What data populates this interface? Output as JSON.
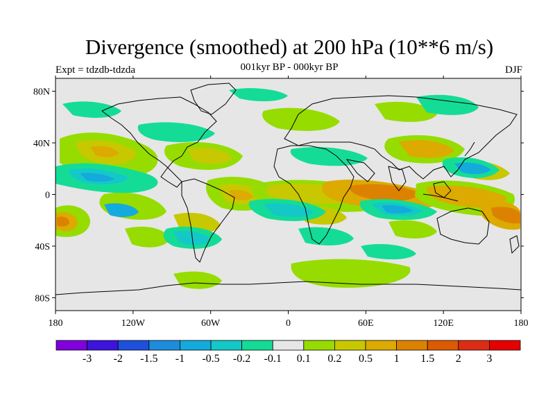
{
  "header": {
    "title": "Divergence (smoothed) at 200 hPa (10**6 m/s)",
    "subtitle": "001kyr BP - 000kyr BP",
    "experiment": "Expt = tdzdb-tdzda",
    "season": "DJF"
  },
  "map": {
    "lon_range": [
      -180,
      180
    ],
    "lat_range": [
      -90,
      90
    ],
    "lat_ticks": [
      {
        "value": 80,
        "label": "80N"
      },
      {
        "value": 40,
        "label": "40N"
      },
      {
        "value": 0,
        "label": "0"
      },
      {
        "value": -40,
        "label": "40S"
      },
      {
        "value": -80,
        "label": "80S"
      }
    ],
    "lon_ticks": [
      {
        "value": -180,
        "label": "180"
      },
      {
        "value": -120,
        "label": "120W"
      },
      {
        "value": -60,
        "label": "60W"
      },
      {
        "value": 0,
        "label": "0"
      },
      {
        "value": 60,
        "label": "60E"
      },
      {
        "value": 120,
        "label": "120E"
      },
      {
        "value": 180,
        "label": "180"
      }
    ],
    "background_color": "#e6e6e6",
    "coastline_color": "#000000"
  },
  "colorbar": {
    "colors": [
      "#7f00dc",
      "#3c14dc",
      "#1e50dc",
      "#1e8cdc",
      "#14aadc",
      "#14c8c8",
      "#14dc96",
      "#e6e6e6",
      "#96dc00",
      "#c8c800",
      "#dcaa00",
      "#dc8200",
      "#dc5a00",
      "#dc2d14",
      "#e60000"
    ],
    "labels": [
      "-3",
      "-2",
      "-1.5",
      "-1",
      "-0.5",
      "-0.2",
      "-0.1",
      "0.1",
      "0.2",
      "0.5",
      "1",
      "1.5",
      "2",
      "3"
    ]
  }
}
